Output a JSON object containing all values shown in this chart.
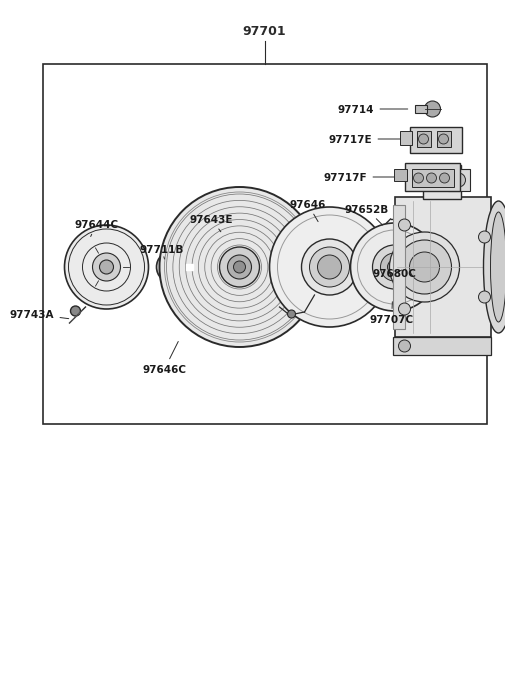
{
  "bg_color": "#ffffff",
  "line_color": "#2a2a2a",
  "part_color": "#2a2a2a",
  "title_label": "97701",
  "parts_labels": [
    "97743A",
    "97644C",
    "97711B",
    "97643E",
    "97646",
    "97646C",
    "97652B",
    "97680C",
    "97707C",
    "97714",
    "97717E",
    "97717F"
  ]
}
